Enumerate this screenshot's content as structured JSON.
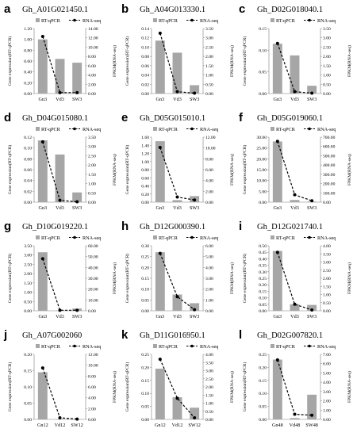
{
  "colors": {
    "bar": "#a6a6a6",
    "line": "#000000",
    "axis": "#7f7f7f"
  },
  "legend": {
    "bar_label": "RT-qPCR",
    "line_label": "RNA-seq"
  },
  "axis_labels": {
    "left": "Gene expression(RT-qPCR)",
    "right": "FPKM(RNA-seq)"
  },
  "chart_data": [
    {
      "id": "a",
      "panel_label": "a",
      "title": "Gh_A01G021450.1",
      "type": "bar+line",
      "categories": [
        "Gn3",
        "Vd3",
        "SW3"
      ],
      "left_ticks": [
        "0.00",
        "0.20",
        "0.40",
        "0.60",
        "0.80",
        "1.00",
        "1.20"
      ],
      "left_lim": [
        0,
        1.2
      ],
      "right_ticks": [
        "0.00",
        "2.00",
        "4.00",
        "6.00",
        "8.00",
        "10.00",
        "12.00",
        "14.00"
      ],
      "right_lim": [
        0,
        14
      ],
      "bars": [
        1.0,
        0.64,
        0.57
      ],
      "line": [
        12.3,
        0.2,
        0.2
      ]
    },
    {
      "id": "b",
      "panel_label": "b",
      "title": "Gh_A04G013330.1",
      "type": "bar+line",
      "categories": [
        "Gn3",
        "Vd3",
        "SW3"
      ],
      "left_ticks": [
        "0.00",
        "0.02",
        "0.04",
        "0.06",
        "0.08",
        "0.10",
        "0.12",
        "0.14"
      ],
      "left_lim": [
        0,
        0.14
      ],
      "right_ticks": [
        "0.00",
        "0.50",
        "1.00",
        "1.50",
        "2.00",
        "2.50",
        "3.00",
        "3.50"
      ],
      "right_lim": [
        0,
        3.5
      ],
      "bars": [
        0.114,
        0.088,
        0.018
      ],
      "line": [
        3.25,
        0.1,
        0.02
      ]
    },
    {
      "id": "c",
      "panel_label": "c",
      "title": "Gh_D02G018040.1",
      "type": "bar+line",
      "categories": [
        "Gn3",
        "Vd3",
        "SW3"
      ],
      "left_ticks": [
        "0.00",
        "0.05",
        "0.10",
        "0.15"
      ],
      "left_lim": [
        0,
        0.15
      ],
      "right_ticks": [
        "0.00",
        "0.50",
        "1.00",
        "1.50",
        "2.00",
        "2.50",
        "3.00",
        "3.50"
      ],
      "right_lim": [
        0,
        3.5
      ],
      "bars": [
        0.115,
        0.088,
        0.018
      ],
      "line": [
        2.7,
        0.1,
        0.02
      ]
    },
    {
      "id": "d",
      "panel_label": "d",
      "title": "Gh_D04G015080.1",
      "type": "bar+line",
      "categories": [
        "Gn3",
        "Vd3",
        "SW3"
      ],
      "left_ticks": [
        "0.00",
        "0.02",
        "0.04",
        "0.06",
        "0.08",
        "0.10",
        "0.12"
      ],
      "left_lim": [
        0,
        0.12
      ],
      "right_ticks": [
        "0.00",
        "0.50",
        "1.00",
        "1.50",
        "2.00",
        "2.50",
        "3.00",
        "3.50"
      ],
      "right_lim": [
        0,
        3.5
      ],
      "bars": [
        0.114,
        0.088,
        0.018
      ],
      "line": [
        3.25,
        0.1,
        0.02
      ]
    },
    {
      "id": "e",
      "panel_label": "e",
      "title": "Gh_D05G015010.1",
      "type": "bar+line",
      "categories": [
        "Gn3",
        "Vd3",
        "SW3"
      ],
      "left_ticks": [
        "0.00",
        "0.20",
        "0.40",
        "0.60",
        "0.80",
        "1.00",
        "1.20",
        "1.40",
        "1.60"
      ],
      "left_lim": [
        0,
        1.6
      ],
      "right_ticks": [
        "0.00",
        "2.00",
        "4.00",
        "6.00",
        "8.00",
        "10.00",
        "12.00"
      ],
      "right_lim": [
        0,
        12
      ],
      "bars": [
        1.5,
        0.05,
        0.15
      ],
      "line": [
        10.1,
        0.95,
        0.4
      ]
    },
    {
      "id": "f",
      "panel_label": "f",
      "title": "Gh_D05G019060.1",
      "type": "bar+line",
      "categories": [
        "Gn3",
        "Vd3",
        "SW3"
      ],
      "left_ticks": [
        "0.00",
        "5.00",
        "10.00",
        "15.00",
        "20.00",
        "25.00",
        "30.00"
      ],
      "left_lim": [
        0,
        30
      ],
      "right_ticks": [
        "0.00",
        "100.00",
        "200.00",
        "300.00",
        "400.00",
        "500.00",
        "600.00",
        "700.00"
      ],
      "right_lim": [
        0,
        700
      ],
      "bars": [
        28.0,
        1.0,
        0.3
      ],
      "line": [
        655,
        80,
        15
      ]
    },
    {
      "id": "g",
      "panel_label": "g",
      "title": "Gh_D10G019220.1",
      "type": "bar+line",
      "categories": [
        "Gn3",
        "Vd3",
        "SW3"
      ],
      "left_ticks": [
        "0.00",
        "0.50",
        "1.00",
        "1.50",
        "2.00",
        "2.50",
        "3.00",
        "3.50"
      ],
      "left_lim": [
        0,
        3.5
      ],
      "right_ticks": [
        "0.00",
        "10.00",
        "20.00",
        "30.00",
        "40.00",
        "50.00",
        "60.00"
      ],
      "right_lim": [
        0,
        60
      ],
      "bars": [
        3.15,
        0.02,
        0.12
      ],
      "line": [
        48,
        0.5,
        0.5
      ]
    },
    {
      "id": "h",
      "panel_label": "h",
      "title": "Gh_D12G000390.1",
      "type": "bar+line",
      "categories": [
        "Gn3",
        "Vd3",
        "SW3"
      ],
      "left_ticks": [
        "0.00",
        "0.05",
        "0.10",
        "0.15",
        "0.20",
        "0.25",
        "0.30"
      ],
      "left_lim": [
        0,
        0.3
      ],
      "right_ticks": [
        "0.00",
        "1.00",
        "2.00",
        "3.00",
        "4.00",
        "5.00",
        "6.00"
      ],
      "right_lim": [
        0,
        6
      ],
      "bars": [
        0.27,
        0.075,
        0.035
      ],
      "line": [
        5.3,
        1.3,
        0.1
      ]
    },
    {
      "id": "i",
      "panel_label": "i",
      "title": "Gh_D12G021740.1",
      "type": "bar+line",
      "categories": [
        "Gn3",
        "Vd3",
        "SW3"
      ],
      "left_ticks": [
        "0.00",
        "0.05",
        "0.10",
        "0.15",
        "0.20",
        "0.25",
        "0.30",
        "0.35",
        "0.40",
        "0.45",
        "0.50"
      ],
      "left_lim": [
        0,
        0.5
      ],
      "right_ticks": [
        "0.00",
        "0.50",
        "1.00",
        "1.50",
        "2.00",
        "2.50",
        "3.00",
        "3.50",
        "4.00"
      ],
      "right_lim": [
        0,
        4
      ],
      "bars": [
        0.46,
        0.05,
        0.045
      ],
      "line": [
        3.6,
        0.4,
        0.05
      ]
    },
    {
      "id": "j",
      "panel_label": "j",
      "title": "Gh_A07G002060",
      "type": "bar+line",
      "categories": [
        "Gn12",
        "Vd12",
        "SW12"
      ],
      "left_ticks": [
        "0.00",
        "0.05",
        "0.10",
        "0.15",
        "0.20"
      ],
      "left_lim": [
        0,
        0.2
      ],
      "right_ticks": [
        "0.00",
        "2.00",
        "4.00",
        "6.00",
        "8.00",
        "10.00",
        "12.00"
      ],
      "right_lim": [
        0,
        12
      ],
      "bars": [
        0.145,
        0.001,
        0.001
      ],
      "line": [
        9.5,
        0.3,
        0.05
      ]
    },
    {
      "id": "k",
      "panel_label": "k",
      "title": "Gh_D11G016950.1",
      "type": "bar+line",
      "categories": [
        "Gn12",
        "Vd12",
        "SW12"
      ],
      "left_ticks": [
        "0.00",
        "0.05",
        "0.10",
        "0.15",
        "0.20",
        "0.25"
      ],
      "left_lim": [
        0,
        0.25
      ],
      "right_ticks": [
        "0.00",
        "0.50",
        "1.00",
        "1.50",
        "2.00",
        "2.50",
        "3.00",
        "3.50",
        "4.00"
      ],
      "right_lim": [
        0,
        4
      ],
      "bars": [
        0.195,
        0.085,
        0.045
      ],
      "line": [
        3.7,
        1.3,
        0.1
      ]
    },
    {
      "id": "l",
      "panel_label": "l",
      "title": "Gh_D02G007820.1",
      "type": "bar+line",
      "categories": [
        "Gn48",
        "Vd48",
        "SW48"
      ],
      "left_ticks": [
        "0.00",
        "0.05",
        "0.10",
        "0.15",
        "0.20",
        "0.25"
      ],
      "left_lim": [
        0,
        0.25
      ],
      "right_ticks": [
        "0.00",
        "1.00",
        "2.00",
        "3.00",
        "4.00",
        "5.00",
        "6.00",
        "7.00"
      ],
      "right_lim": [
        0,
        7
      ],
      "bars": [
        0.23,
        0.005,
        0.095
      ],
      "line": [
        6.4,
        0.55,
        0.45
      ]
    }
  ]
}
